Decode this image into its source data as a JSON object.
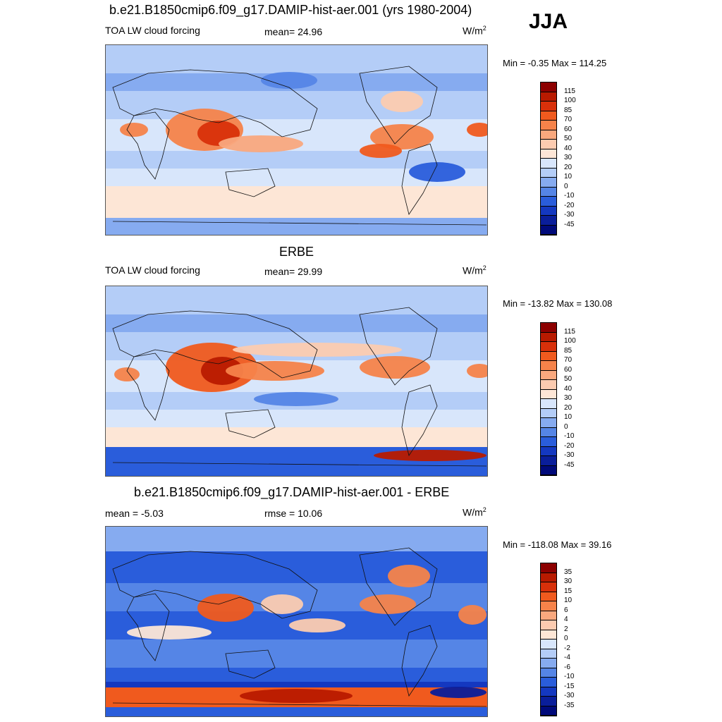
{
  "title": "b.e21.B1850cmip6.f09_g17.DAMIP-hist-aer.001 (yrs 1980-2004)",
  "season": "JJA",
  "panels": [
    {
      "id": "model",
      "title": "",
      "left_label": "TOA LW cloud forcing",
      "center_label": "mean=  24.96",
      "units": "W/m",
      "units_sup": "2",
      "minmax": "Min =  -0.35 Max = 114.25",
      "colorbar_labels": [
        "115",
        "100",
        "85",
        "70",
        "60",
        "50",
        "40",
        "30",
        "20",
        "10",
        "0",
        "-10",
        "-20",
        "-30",
        "-45"
      ]
    },
    {
      "id": "obs",
      "title": "ERBE",
      "left_label": "TOA LW cloud forcing",
      "center_label": "mean=  29.99",
      "units": "W/m",
      "units_sup": "2",
      "minmax": "Min = -13.82 Max = 130.08",
      "colorbar_labels": [
        "115",
        "100",
        "85",
        "70",
        "60",
        "50",
        "40",
        "30",
        "20",
        "10",
        "0",
        "-10",
        "-20",
        "-30",
        "-45"
      ]
    },
    {
      "id": "diff",
      "title": "b.e21.B1850cmip6.f09_g17.DAMIP-hist-aer.001 - ERBE",
      "left_label": "mean =  -5.03",
      "center_label": "rmse =  10.06",
      "units": "W/m",
      "units_sup": "2",
      "minmax": "Min = -118.08 Max =  39.16",
      "colorbar_labels": [
        "35",
        "30",
        "15",
        "10",
        "6",
        "4",
        "2",
        "0",
        "-2",
        "-4",
        "-6",
        "-10",
        "-15",
        "-30",
        "-35"
      ]
    }
  ],
  "chart_data": [
    {
      "type": "heatmap",
      "title": "b.e21.B1850cmip6.f09_g17.DAMIP-hist-aer.001 (yrs 1980-2004)",
      "variable": "TOA LW cloud forcing",
      "units": "W/m2",
      "mean": 24.96,
      "min": -0.35,
      "max": 114.25,
      "levels": [
        115,
        100,
        85,
        70,
        60,
        50,
        40,
        30,
        20,
        10,
        0,
        -10,
        -20,
        -30,
        -45
      ]
    },
    {
      "type": "heatmap",
      "title": "ERBE",
      "variable": "TOA LW cloud forcing",
      "units": "W/m2",
      "mean": 29.99,
      "min": -13.82,
      "max": 130.08,
      "levels": [
        115,
        100,
        85,
        70,
        60,
        50,
        40,
        30,
        20,
        10,
        0,
        -10,
        -20,
        -30,
        -45
      ]
    },
    {
      "type": "heatmap",
      "title": "b.e21.B1850cmip6.f09_g17.DAMIP-hist-aer.001 - ERBE",
      "units": "W/m2",
      "mean": -5.03,
      "rmse": 10.06,
      "min": -118.08,
      "max": 39.16,
      "levels": [
        35,
        30,
        15,
        10,
        6,
        4,
        2,
        0,
        -2,
        -4,
        -6,
        -10,
        -15,
        -30,
        -35
      ]
    }
  ],
  "colors": {
    "scale": [
      "#8c0000",
      "#b81a00",
      "#d8300a",
      "#f05a1e",
      "#f6834a",
      "#f9a87e",
      "#fccbb0",
      "#fde6d6",
      "#d8e6fb",
      "#b4cdf7",
      "#86abf0",
      "#5585e6",
      "#2a5ddb",
      "#1438c0",
      "#0a1e9a",
      "#000a7a"
    ]
  }
}
